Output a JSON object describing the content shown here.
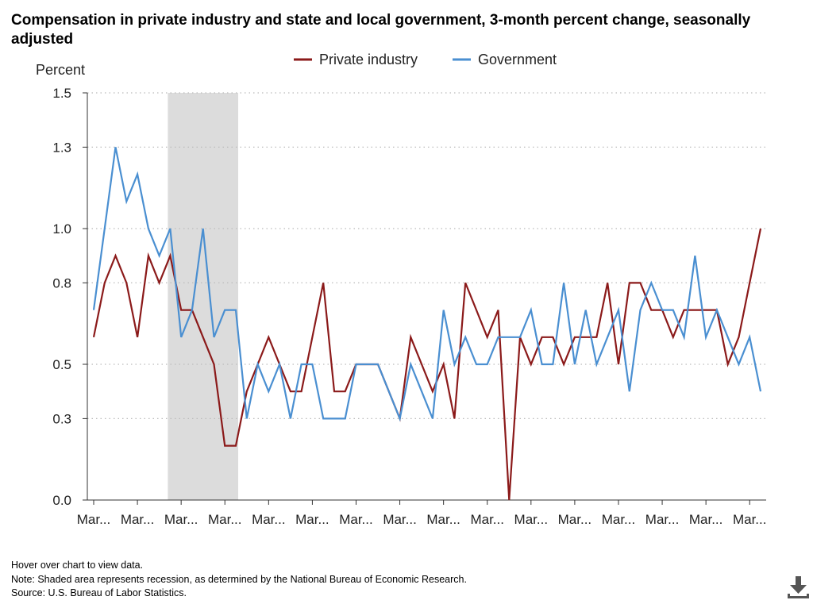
{
  "chart_data": {
    "type": "line",
    "title": "Compensation in private industry and state and local government, 3-month percent change, seasonally adjusted",
    "ylabel": "Percent",
    "xlabel": "",
    "ylim": [
      0,
      1.5
    ],
    "y_ticks": [
      0.0,
      0.3,
      0.5,
      0.8,
      1.0,
      1.3,
      1.5
    ],
    "y_tick_labels": [
      "0.0",
      "0.3",
      "0.5",
      "0.8",
      "1.0",
      "1.3",
      "1.5"
    ],
    "x_tick_labels": [
      "Mar...",
      "Mar...",
      "Mar...",
      "Mar...",
      "Mar...",
      "Mar...",
      "Mar...",
      "Mar...",
      "Mar...",
      "Mar...",
      "Mar...",
      "Mar...",
      "Mar...",
      "Mar...",
      "Mar...",
      "Mar..."
    ],
    "x_tick_indices": [
      0,
      4,
      8,
      12,
      16,
      20,
      24,
      28,
      32,
      36,
      40,
      44,
      48,
      52,
      56,
      60
    ],
    "grid": "horizontal dotted",
    "legend_position": "top-center",
    "recession_shade": {
      "start_index": 7,
      "end_index": 13,
      "color": "#dcdcdc"
    },
    "series": [
      {
        "name": "Private industry",
        "color": "#8b1a1a",
        "values": [
          0.6,
          0.8,
          0.9,
          0.8,
          0.6,
          0.9,
          0.8,
          0.9,
          0.7,
          0.7,
          0.6,
          0.5,
          0.2,
          0.2,
          0.4,
          0.5,
          0.6,
          0.5,
          0.4,
          0.4,
          0.6,
          0.8,
          0.4,
          0.4,
          0.5,
          0.5,
          0.5,
          0.4,
          0.3,
          0.6,
          0.5,
          0.4,
          0.5,
          0.3,
          0.8,
          0.7,
          0.6,
          0.7,
          0.0,
          0.6,
          0.5,
          0.6,
          0.6,
          0.5,
          0.6,
          0.6,
          0.6,
          0.8,
          0.5,
          0.8,
          0.8,
          0.7,
          0.7,
          0.6,
          0.7,
          0.7,
          0.7,
          0.7,
          0.5,
          0.6,
          0.8,
          1.0
        ]
      },
      {
        "name": "Government",
        "color": "#4a8fd1",
        "values": [
          0.7,
          1.0,
          1.3,
          1.1,
          1.2,
          1.0,
          0.9,
          1.0,
          0.6,
          0.7,
          1.0,
          0.6,
          0.7,
          0.7,
          0.3,
          0.5,
          0.4,
          0.5,
          0.3,
          0.5,
          0.5,
          0.3,
          0.3,
          0.3,
          0.5,
          0.5,
          0.5,
          0.4,
          0.3,
          0.5,
          0.4,
          0.3,
          0.7,
          0.5,
          0.6,
          0.5,
          0.5,
          0.6,
          0.6,
          0.6,
          0.7,
          0.5,
          0.5,
          0.8,
          0.5,
          0.7,
          0.5,
          0.6,
          0.7,
          0.4,
          0.7,
          0.8,
          0.7,
          0.7,
          0.6,
          0.9,
          0.6,
          0.7,
          0.6,
          0.5,
          0.6,
          0.4
        ]
      }
    ]
  },
  "footnotes": {
    "hover": "Hover over chart to view data.",
    "note": "Note: Shaded area represents recession, as determined by the National Bureau of Economic Research.",
    "source": "Source: U.S. Bureau of Labor Statistics."
  },
  "download": {
    "icon": "download-icon"
  }
}
